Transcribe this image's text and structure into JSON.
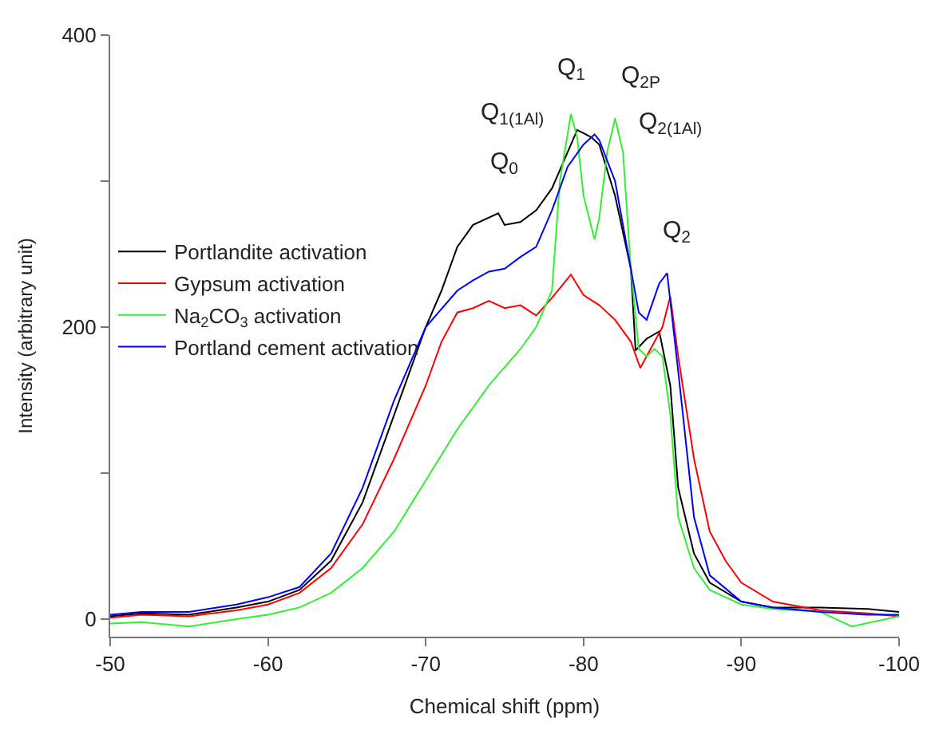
{
  "chart_data": {
    "type": "line",
    "xlabel": "Chemical shift (ppm)",
    "ylabel": "Intensity (arbitrary unit)",
    "xlim": [
      -50,
      -100
    ],
    "xticks": [
      -50,
      -60,
      -70,
      -80,
      -90,
      -100
    ],
    "ylim": [
      -12,
      400
    ],
    "yticks": [
      0,
      {
        "value": 100,
        "label": null
      },
      200,
      {
        "value": 300,
        "label": null
      },
      400
    ],
    "legend": "left",
    "marker": "none",
    "line_style": "solid",
    "series": [
      {
        "name": "Portlandite activation",
        "color": "#000000",
        "x": [
          -50,
          -52,
          -55,
          -58,
          -60,
          -62,
          -64,
          -66,
          -68,
          -70,
          -71,
          -72,
          -73,
          -74.6,
          -75,
          -76,
          -77,
          -78,
          -79,
          -79.6,
          -80.5,
          -81,
          -82,
          -83,
          -83.3,
          -84,
          -84.8,
          -85.5,
          -86,
          -87,
          -88,
          -90,
          -92,
          -95,
          -98,
          -100
        ],
        "values": [
          2,
          4,
          3,
          8,
          12,
          20,
          40,
          80,
          140,
          200,
          225,
          255,
          270,
          278,
          270,
          272,
          280,
          295,
          320,
          335,
          330,
          325,
          290,
          240,
          184,
          192,
          197,
          160,
          90,
          45,
          25,
          12,
          8,
          8,
          7,
          5
        ]
      },
      {
        "name": "Gypsum activation",
        "color": "#ff0000",
        "x": [
          -50,
          -52,
          -55,
          -58,
          -60,
          -62,
          -64,
          -66,
          -68,
          -70,
          -71,
          -72,
          -73,
          -74,
          -75,
          -76,
          -77,
          -78,
          -79.2,
          -80,
          -81,
          -82,
          -83,
          -83.6,
          -84.5,
          -85,
          -85.5,
          -86,
          -87,
          -88,
          -89,
          -90,
          -92,
          -95,
          -98,
          -100
        ],
        "values": [
          1,
          3,
          2,
          6,
          10,
          18,
          35,
          65,
          110,
          160,
          190,
          210,
          213,
          218,
          213,
          215,
          208,
          220,
          236,
          222,
          215,
          205,
          190,
          172,
          190,
          200,
          221,
          180,
          110,
          60,
          40,
          25,
          12,
          6,
          4,
          2
        ]
      },
      {
        "name": "Na$_{2}$CO$_{3}$ activation",
        "color": "#33ee33",
        "x": [
          -50,
          -52,
          -55,
          -58,
          -60,
          -62,
          -64,
          -66,
          -68,
          -70,
          -72,
          -74,
          -76,
          -77,
          -78,
          -78.5,
          -79.2,
          -79.6,
          -80,
          -80.7,
          -81,
          -81.5,
          -82,
          -82.5,
          -83,
          -83.5,
          -84,
          -84.5,
          -85,
          -85.5,
          -86,
          -87,
          -88,
          -90,
          -92,
          -95,
          -97,
          -100
        ],
        "values": [
          -3,
          -2,
          -5,
          0,
          3,
          8,
          18,
          35,
          60,
          95,
          130,
          160,
          185,
          200,
          225,
          300,
          346,
          330,
          290,
          260,
          275,
          320,
          343,
          320,
          240,
          185,
          180,
          185,
          180,
          140,
          70,
          35,
          20,
          10,
          7,
          5,
          -5,
          2
        ]
      },
      {
        "name": "Portland cement activation",
        "color": "#0000ff",
        "x": [
          -50,
          -52,
          -55,
          -58,
          -60,
          -62,
          -64,
          -66,
          -68,
          -70,
          -72,
          -73,
          -74,
          -75,
          -76,
          -77,
          -78,
          -79,
          -80,
          -80.7,
          -81,
          -82,
          -83,
          -83.5,
          -84,
          -84.8,
          -85.3,
          -86,
          -87,
          -88,
          -90,
          -92,
          -95,
          -98,
          -100
        ],
        "values": [
          3,
          5,
          5,
          10,
          15,
          22,
          45,
          90,
          150,
          200,
          225,
          232,
          238,
          240,
          248,
          255,
          280,
          310,
          325,
          332,
          328,
          300,
          240,
          210,
          205,
          230,
          237,
          170,
          70,
          30,
          12,
          8,
          5,
          3,
          3
        ]
      }
    ],
    "annotations": [
      {
        "text": "Q$_{0}$",
        "x": -74.6,
        "y": 278
      },
      {
        "text": "Q$_{1(1Al)}$",
        "x": -79.6,
        "y": 335
      },
      {
        "text": "Q$_{1}$",
        "x": -79.2,
        "y": 346
      },
      {
        "text": "Q$_{2P}$",
        "x": -82,
        "y": 343
      },
      {
        "text": "Q$_{2(1Al)}$",
        "x": -82.5,
        "y": 320
      },
      {
        "text": "Q$_{2}$",
        "x": -85.3,
        "y": 237
      }
    ]
  }
}
